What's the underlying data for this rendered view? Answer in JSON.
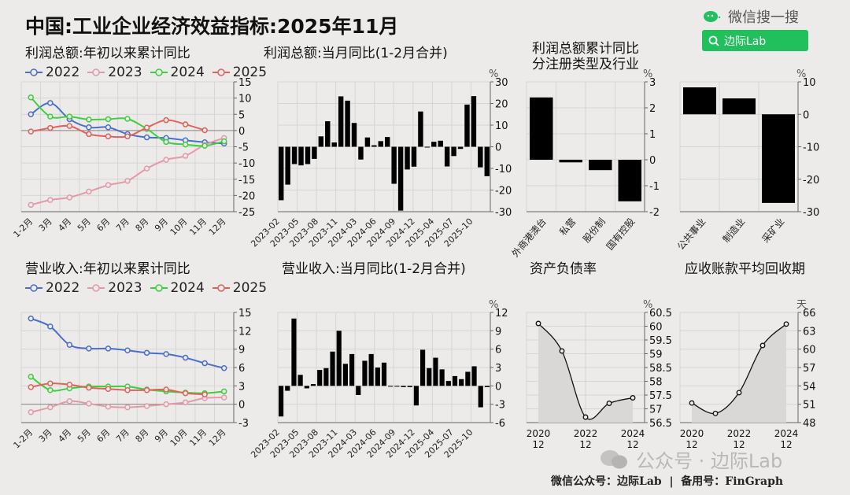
{
  "header": {
    "title": "中国:工业企业经济效益指标:2025年11月",
    "brand_label": "微信搜一搜",
    "search_label": "边际Lab"
  },
  "footer": {
    "watermark": "公众号 · 边际Lab",
    "credit": "微信公众号：边际Lab  |  备用号：FinGraph"
  },
  "colors": {
    "s2022": "#4a6fc9",
    "s2023": "#e39aa8",
    "s2024": "#3ecf3e",
    "s2025": "#e0625c",
    "bar": "#000000",
    "grid": "#d6d5d3",
    "area": "#d9d8d6",
    "search_green": "#22c05d"
  },
  "legend": [
    "2022",
    "2023",
    "2024",
    "2025"
  ],
  "chart_data": [
    {
      "id": "profit_ytd",
      "type": "line",
      "title": "利润总额:年初以来累计同比",
      "categories": [
        "1-2月",
        "3月",
        "4月",
        "5月",
        "6月",
        "7月",
        "8月",
        "9月",
        "10月",
        "11月",
        "12月"
      ],
      "series": [
        {
          "name": "2022",
          "values": [
            5.0,
            8.5,
            3.5,
            1.0,
            1.0,
            -1.1,
            -2.1,
            -2.3,
            -3.0,
            -3.6,
            -4.0
          ]
        },
        {
          "name": "2023",
          "values": [
            -22.9,
            -21.4,
            -20.6,
            -18.8,
            -16.8,
            -15.5,
            -11.7,
            -9.0,
            -7.8,
            -4.4,
            -2.3
          ]
        },
        {
          "name": "2024",
          "values": [
            10.2,
            4.3,
            4.3,
            3.4,
            3.5,
            3.6,
            0.5,
            -3.5,
            -4.3,
            -4.7,
            -3.3
          ]
        },
        {
          "name": "2025",
          "values": [
            -0.3,
            0.8,
            1.4,
            -1.1,
            -1.8,
            -1.8,
            0.9,
            3.2,
            1.9,
            0.1
          ]
        }
      ],
      "ylim": [
        -25,
        15
      ],
      "yticks": [
        15,
        10,
        5,
        0,
        -5,
        -10,
        -15,
        -20,
        -25
      ]
    },
    {
      "id": "profit_monthly",
      "type": "bar",
      "title": "利润总额:当月同比(1-2月合并)",
      "unit": "%",
      "xtick_labels": [
        "2023-02",
        "2023-05",
        "2023-08",
        "2023-11",
        "2024-03",
        "2024-06",
        "2024-09",
        "2024-12",
        "2025-04",
        "2025-07",
        "2025-10"
      ],
      "values": [
        -24.7,
        -17.5,
        -8.0,
        -8.6,
        -8.0,
        -5.6,
        4.8,
        11.8,
        2.0,
        23.3,
        21.3,
        11.0,
        -5.9,
        4.3,
        0.7,
        2.6,
        4.5,
        -17.1,
        -29.5,
        -10.5,
        -9.2,
        16.3,
        -0.3,
        2.3,
        2.8,
        -9.1,
        -4.3,
        -1.0,
        19.5,
        23.4,
        -9.5,
        -13.6
      ],
      "ylim": [
        -30,
        30
      ],
      "yticks": [
        30,
        20,
        10,
        0,
        -10,
        -20,
        -30
      ]
    },
    {
      "id": "profit_by_type",
      "type": "bar",
      "title": "利润总额累计同比\n分注册类型及行业",
      "unit": "%",
      "categories": [
        "外商港澳台",
        "私营",
        "股份制",
        "国有控股"
      ],
      "values": [
        2.4,
        -0.1,
        -0.4,
        -1.6
      ],
      "ylim": [
        -2,
        3
      ],
      "yticks": [
        3,
        2,
        1,
        0,
        -1,
        -2
      ]
    },
    {
      "id": "profit_by_industry",
      "type": "bar",
      "unit": "%",
      "categories": [
        "公共事业",
        "制造业",
        "采矿业"
      ],
      "values": [
        8.3,
        4.9,
        -27.3
      ],
      "ylim": [
        -30,
        10
      ],
      "yticks": [
        10,
        0,
        -10,
        -20,
        -30
      ]
    },
    {
      "id": "revenue_ytd",
      "type": "line",
      "title": "营业收入:年初以来累计同比",
      "categories": [
        "1-2月",
        "3月",
        "4月",
        "5月",
        "6月",
        "7月",
        "8月",
        "9月",
        "10月",
        "11月",
        "12月"
      ],
      "series": [
        {
          "name": "2022",
          "values": [
            14.0,
            12.7,
            9.7,
            9.1,
            9.1,
            8.8,
            8.4,
            8.2,
            7.6,
            6.7,
            5.9
          ]
        },
        {
          "name": "2023",
          "values": [
            -1.3,
            -0.5,
            0.5,
            0.1,
            -0.4,
            -0.5,
            -0.3,
            0.0,
            0.3,
            1.0,
            1.1
          ]
        },
        {
          "name": "2024",
          "values": [
            4.5,
            2.3,
            2.6,
            2.9,
            2.9,
            2.9,
            2.4,
            2.1,
            1.9,
            1.8,
            2.1
          ]
        },
        {
          "name": "2025",
          "values": [
            2.8,
            3.4,
            3.2,
            2.7,
            2.5,
            2.3,
            2.3,
            2.4,
            1.8,
            1.6
          ]
        }
      ],
      "ylim": [
        -3,
        15
      ],
      "yticks": [
        15,
        12,
        9,
        6,
        3,
        0,
        -3
      ]
    },
    {
      "id": "revenue_monthly",
      "type": "bar",
      "title": "营业收入:当月同比(1-2月合并)",
      "unit": "%",
      "xtick_labels": [
        "2023-02",
        "2023-05",
        "2023-08",
        "2023-11",
        "2024-03",
        "2024-06",
        "2024-09",
        "2024-12",
        "2025-04",
        "2025-07",
        "2025-10"
      ],
      "values": [
        -5.0,
        -0.8,
        11.0,
        1.8,
        -0.4,
        0.3,
        2.6,
        2.9,
        5.6,
        9.0,
        3.6,
        5.2,
        -1.5,
        4.1,
        5.2,
        3.0,
        3.8,
        0,
        0,
        -0.2,
        -0.2,
        -3.2,
        5.9,
        2.9,
        4.6,
        2.7,
        0.8,
        1.6,
        1.1,
        2.3,
        3.2,
        -3.5,
        -0.2
      ],
      "ylim": [
        -6,
        12
      ],
      "yticks": [
        12,
        9,
        6,
        3,
        0,
        -3,
        -6
      ]
    },
    {
      "id": "debt_ratio",
      "type": "area",
      "title": "资产负债率",
      "unit": "%",
      "x": [
        "2020-12",
        "2021-12",
        "2022-12",
        "2023-12",
        "2024-12"
      ],
      "xtick_labels": [
        "2020\n12",
        "2022\n12",
        "2024\n12"
      ],
      "values": [
        60.1,
        59.1,
        56.7,
        57.2,
        57.4
      ],
      "ylim": [
        56.5,
        60.5
      ],
      "yticks": [
        60.5,
        60,
        59.5,
        59,
        58.5,
        58,
        57.5,
        57,
        56.5
      ]
    },
    {
      "id": "receivable_days",
      "type": "area",
      "title": "应收账款平均回收期",
      "unit": "天",
      "x": [
        "2020-12",
        "2021-12",
        "2022-12",
        "2023-12",
        "2024-12"
      ],
      "xtick_labels": [
        "2020\n12",
        "2022\n12",
        "2024\n12"
      ],
      "values": [
        51.2,
        49.5,
        52.9,
        60.6,
        64.1
      ],
      "ylim": [
        48,
        66
      ],
      "yticks": [
        66,
        63,
        60,
        57,
        54,
        51,
        48
      ]
    }
  ]
}
